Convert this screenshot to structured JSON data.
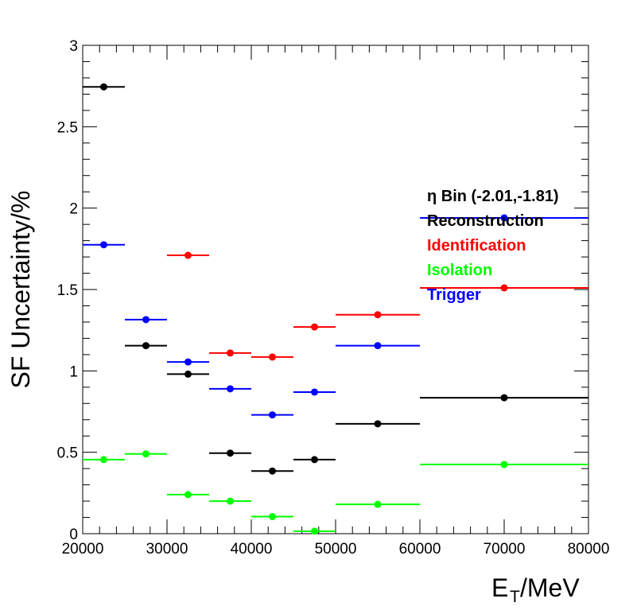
{
  "chart_data": {
    "type": "scatter",
    "title": "",
    "xlabel": "E",
    "xlabel_sub": "T",
    "xlabel_unit": "/MeV",
    "ylabel": "SF Uncertainty/%",
    "xlim": [
      20000,
      80000
    ],
    "ylim": [
      0,
      3
    ],
    "x_ticks": [
      20000,
      30000,
      40000,
      50000,
      60000,
      70000,
      80000
    ],
    "y_ticks": [
      0,
      0.5,
      1,
      1.5,
      2,
      2.5,
      3
    ],
    "y_tick_labels": [
      "0",
      "0.5",
      "1",
      "1.5",
      "2",
      "2.5",
      "3"
    ],
    "grid": false,
    "legend_position": "right",
    "legend_header": "η Bin (-2.01,-1.81)",
    "bins": [
      [
        20000,
        25000
      ],
      [
        25000,
        30000
      ],
      [
        30000,
        35000
      ],
      [
        35000,
        40000
      ],
      [
        40000,
        45000
      ],
      [
        45000,
        50000
      ],
      [
        50000,
        60000
      ],
      [
        60000,
        80000
      ]
    ],
    "x": [
      22500,
      27500,
      32500,
      37500,
      42500,
      47500,
      55000,
      70000
    ],
    "series": [
      {
        "name": "Reconstruction",
        "color": "#000000",
        "values": [
          2.745,
          1.155,
          0.98,
          0.495,
          0.385,
          0.455,
          0.675,
          0.835
        ]
      },
      {
        "name": "Identification",
        "color": "#ff0000",
        "values": [
          null,
          null,
          1.71,
          1.11,
          1.085,
          1.27,
          1.345,
          1.51
        ]
      },
      {
        "name": "Isolation",
        "color": "#00ff00",
        "values": [
          0.455,
          0.49,
          0.24,
          0.2,
          0.105,
          0.015,
          0.18,
          0.425
        ]
      },
      {
        "name": "Trigger",
        "color": "#0000ff",
        "values": [
          1.775,
          1.315,
          1.055,
          0.89,
          0.73,
          0.87,
          1.155,
          1.94
        ]
      }
    ]
  }
}
